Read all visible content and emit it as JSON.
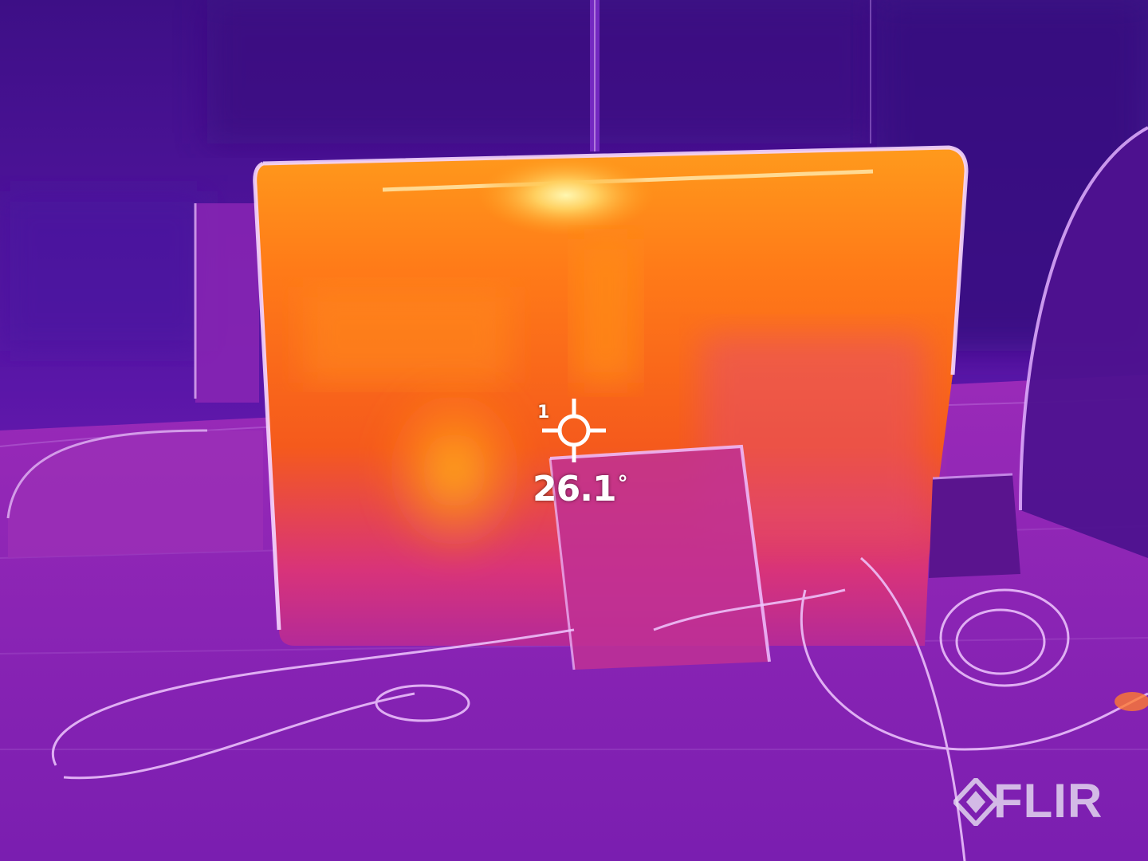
{
  "measurement": {
    "spot_index": "1",
    "value": "26.1",
    "unit": "°"
  },
  "brand": {
    "name": "FLIR",
    "mark_icon": "flir-diamond-logo-icon"
  },
  "palette": {
    "name": "iron",
    "cold": "#2c0d6e",
    "cool": "#6a1aa8",
    "mid": "#c0208c",
    "warm": "#ff6a1a",
    "hot": "#ffb11f",
    "hottest": "#fff08a"
  }
}
